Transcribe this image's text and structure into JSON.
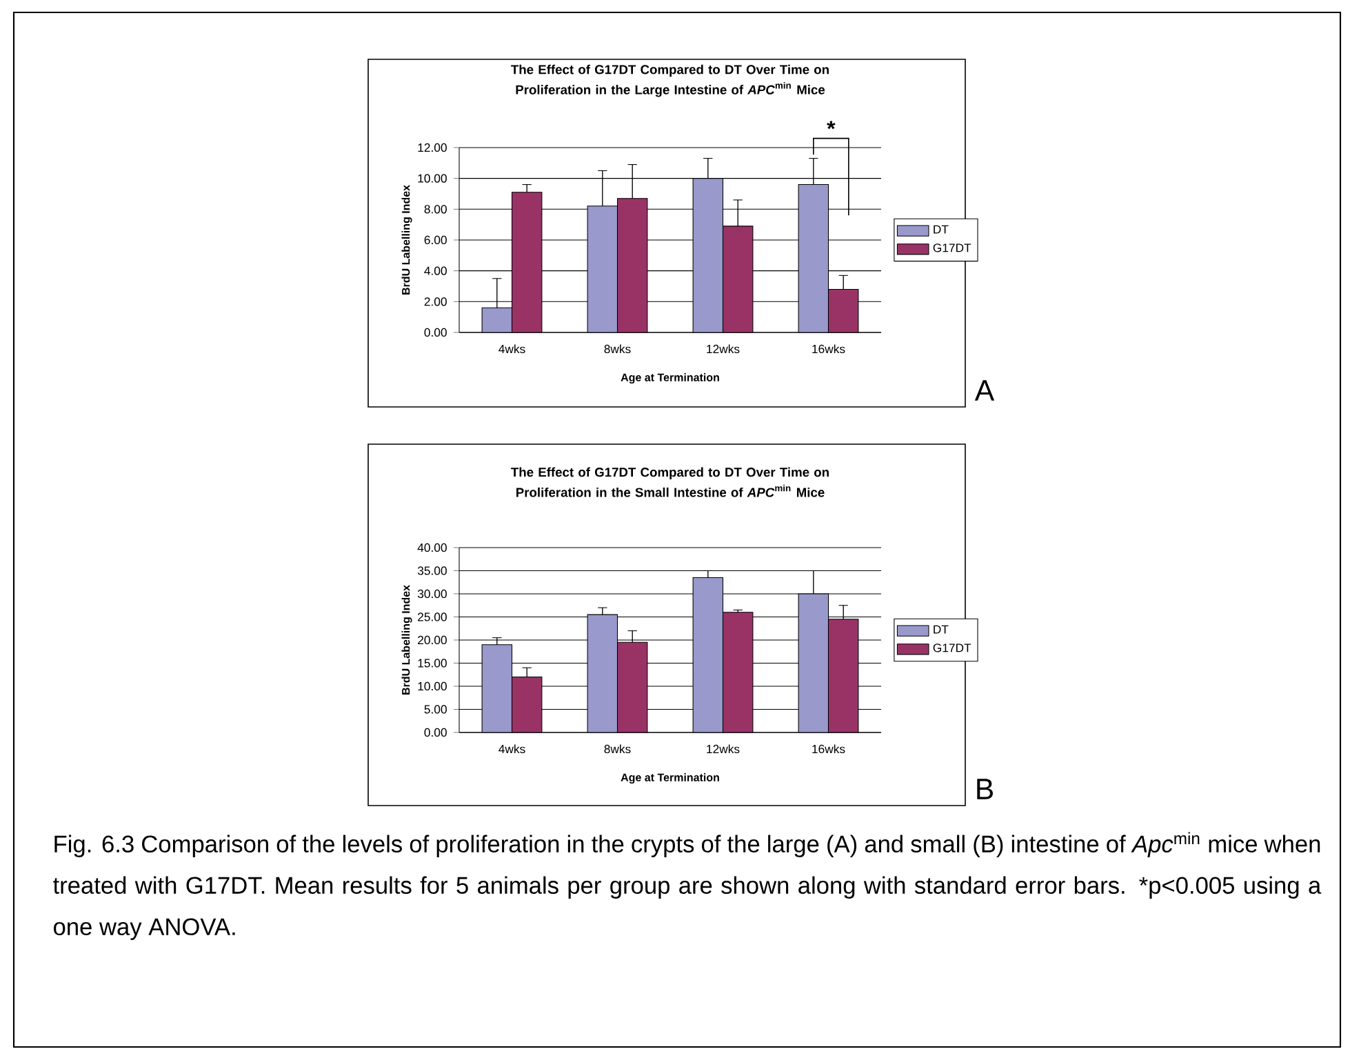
{
  "chart_data": [
    {
      "type": "bar",
      "title": "The Effect of G17DT Compared to DT Over Time on Proliferation in the Large Intestine of *APC*$^{min}$ Mice",
      "xlabel": "Age at Termination",
      "ylabel": "BrdU Labelling Index",
      "categories": [
        "4wks",
        "8wks",
        "12wks",
        "16wks"
      ],
      "series": [
        {
          "name": "DT",
          "color": "#9999cc",
          "values": [
            1.6,
            8.2,
            10.0,
            9.6
          ],
          "errors": [
            [
              1.6,
              3.5
            ],
            [
              8.2,
              10.5
            ],
            [
              10.0,
              11.3
            ],
            [
              9.6,
              11.3
            ]
          ]
        },
        {
          "name": "G17DT",
          "color": "#993366",
          "values": [
            9.1,
            8.7,
            6.9,
            2.8
          ],
          "errors": [
            [
              9.1,
              9.6
            ],
            [
              8.7,
              10.9
            ],
            [
              6.9,
              8.6
            ],
            [
              2.8,
              3.7
            ]
          ]
        }
      ],
      "ylim": [
        0,
        12
      ],
      "yticks": [
        {
          "value": 0,
          "label": "0.00"
        },
        {
          "value": 2,
          "label": "2.00"
        },
        {
          "value": 4,
          "label": "4.00"
        },
        {
          "value": 6,
          "label": "6.00"
        },
        {
          "value": 8,
          "label": "8.00"
        },
        {
          "value": 10,
          "label": "10.00"
        },
        {
          "value": 12,
          "label": "12.00"
        }
      ],
      "grid": "y",
      "legend": "right",
      "annotations": [
        "*",
        "A"
      ]
    },
    {
      "type": "bar",
      "title": "The Effect of G17DT Compared to DT Over Time on Proliferation in the Small Intestine of *APC*$^{min}$ Mice",
      "xlabel": "Age at Termination",
      "ylabel": "BrdU Labelling Index",
      "categories": [
        "4wks",
        "8wks",
        "12wks",
        "16wks"
      ],
      "series": [
        {
          "name": "DT",
          "color": "#9999cc",
          "values": [
            19,
            25.5,
            33.5,
            30
          ],
          "errors": [
            [
              19,
              20.5
            ],
            [
              25.5,
              27
            ],
            [
              33.5,
              35
            ],
            [
              30,
              35
            ]
          ]
        },
        {
          "name": "G17DT",
          "color": "#993366",
          "values": [
            12,
            19.5,
            26,
            24.5
          ],
          "errors": [
            [
              12,
              14
            ],
            [
              19.5,
              22
            ],
            [
              26,
              26.5
            ],
            [
              24.5,
              27.5
            ]
          ]
        }
      ],
      "ylim": [
        0,
        40
      ],
      "yticks": [
        {
          "value": 0,
          "label": "0.00"
        },
        {
          "value": 5,
          "label": "5.00"
        },
        {
          "value": 10,
          "label": "10.00"
        },
        {
          "value": 15,
          "label": "15.00"
        },
        {
          "value": 20,
          "label": "20.00"
        },
        {
          "value": 25,
          "label": "25.00"
        },
        {
          "value": 30,
          "label": "30.00"
        },
        {
          "value": 35,
          "label": "35.00"
        },
        {
          "value": 40,
          "label": "40.00"
        }
      ],
      "grid": "y",
      "legend": "right",
      "annotations": [
        "B",
        "Fig. 6.3 Comparison of the levels of proliferation in the crypts of the large (A) and small (B) intestine of *Apc*$^{min}$ mice when treated with G17DT.  Mean results for 5 animals per group are shown along with standard error bars.  *p<0.005 using a one way ANOVA."
      ]
    }
  ]
}
